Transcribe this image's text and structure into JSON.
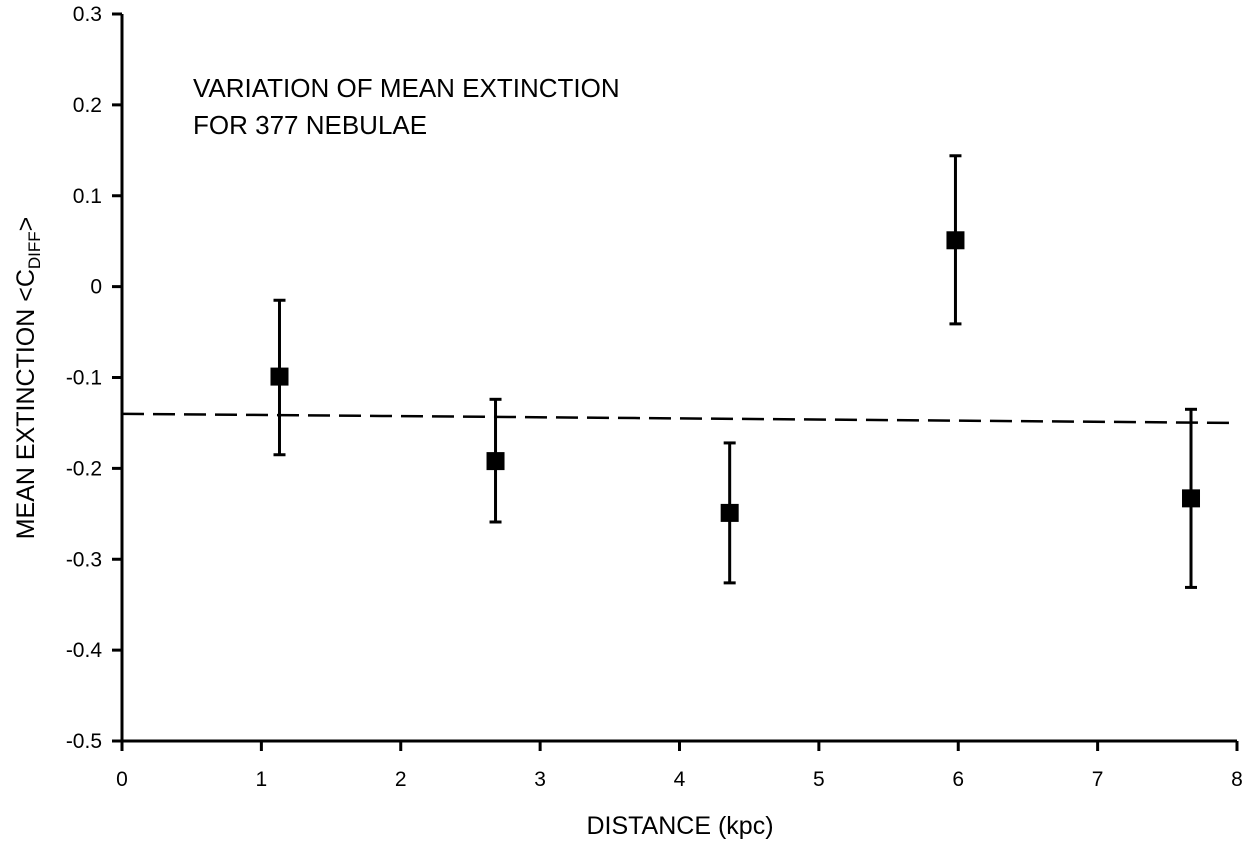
{
  "chart_data": {
    "type": "scatter",
    "title": "",
    "annotation_lines": [
      "VARIATION OF MEAN EXTINCTION",
      "FOR 377 NEBULAE"
    ],
    "xlabel": "DISTANCE (kpc)",
    "ylabel_main": "MEAN EXTINCTION <C",
    "ylabel_sub": "DIFF",
    "ylabel_end": ">",
    "xlim": [
      0,
      8
    ],
    "ylim": [
      -0.5,
      0.3
    ],
    "x_ticks": [
      0,
      1,
      2,
      3,
      4,
      5,
      6,
      7,
      8
    ],
    "x_tick_labels": [
      "0",
      "1",
      "2",
      "3",
      "4",
      "5",
      "6",
      "7",
      "8"
    ],
    "y_ticks": [
      0.3,
      0.2,
      0.1,
      0,
      -0.1,
      -0.2,
      -0.3,
      -0.4,
      -0.5
    ],
    "y_tick_labels": [
      "0.3",
      "0.2",
      "0.1",
      "0",
      "-0.1",
      "-0.2",
      "-0.3",
      "-0.4",
      "-0.5"
    ],
    "grid": false,
    "points": [
      {
        "x": 1.13,
        "y": -0.099,
        "y_low": -0.185,
        "y_high": -0.015
      },
      {
        "x": 2.68,
        "y": -0.192,
        "y_low": -0.259,
        "y_high": -0.124
      },
      {
        "x": 4.36,
        "y": -0.249,
        "y_low": -0.326,
        "y_high": -0.172
      },
      {
        "x": 5.98,
        "y": 0.051,
        "y_low": -0.041,
        "y_high": 0.144
      },
      {
        "x": 7.67,
        "y": -0.233,
        "y_low": -0.331,
        "y_high": -0.135
      }
    ],
    "fit_line": {
      "x": [
        0,
        8
      ],
      "y": [
        -0.14,
        -0.15
      ],
      "style": "dashed"
    },
    "colors": {
      "marks": "#000000",
      "background": "#ffffff"
    }
  }
}
